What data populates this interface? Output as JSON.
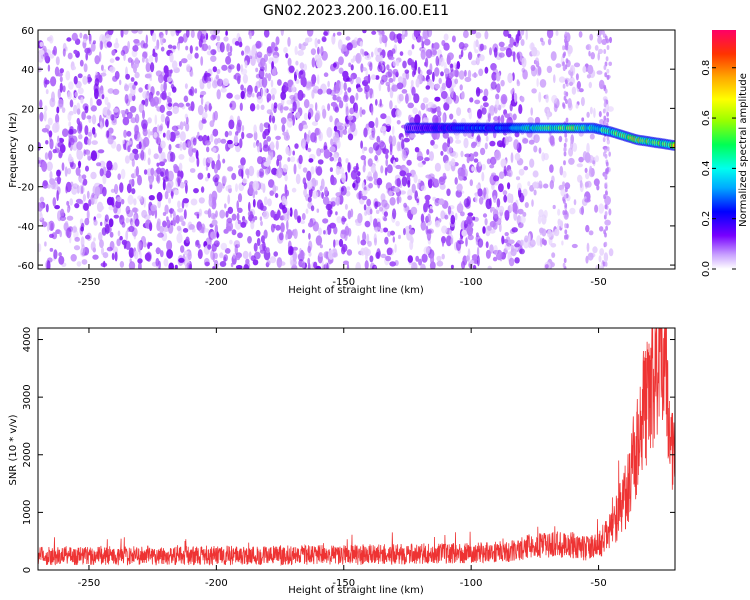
{
  "chart_data": [
    {
      "type": "heatmap",
      "title": "GN02.2023.200.16.00.E11",
      "xlabel": "Height of straight line (km)",
      "ylabel": "Frequency (Hz)",
      "xlim": [
        -270,
        -20
      ],
      "ylim": [
        -62,
        60
      ],
      "xticks": [
        -250,
        -200,
        -150,
        -100,
        -50
      ],
      "yticks": [
        -60,
        -40,
        -20,
        0,
        20,
        40,
        60
      ],
      "noise_regions": [
        {
          "x_from": -270,
          "x_to": -80,
          "level": "dense"
        },
        {
          "x_from": -80,
          "x_to": -45,
          "level": "sparse"
        },
        {
          "x_from": -45,
          "x_to": -20,
          "level": "none"
        }
      ],
      "signal_track": {
        "x": [
          -125,
          -110,
          -100,
          -90,
          -80,
          -70,
          -60,
          -52,
          -45,
          -40,
          -35,
          -30,
          -25,
          -20
        ],
        "y": [
          10,
          10,
          10,
          10,
          10,
          10,
          10,
          10,
          8,
          6,
          4,
          3,
          2,
          1
        ],
        "amplitude": [
          0.15,
          0.25,
          0.3,
          0.3,
          0.45,
          0.6,
          0.65,
          0.5,
          0.55,
          0.65,
          0.7,
          0.7,
          0.65,
          0.75
        ]
      },
      "colorbar": {
        "label": "Normalized spectral amplitude",
        "range": [
          0,
          0.95
        ],
        "ticks": [
          "0.0",
          "0.2",
          "0.4",
          "0.6",
          "0.8"
        ],
        "colormap": "rainbow"
      }
    },
    {
      "type": "line",
      "xlabel": "Height of straight line (km)",
      "ylabel": "SNR (10 * v/v)",
      "xlim": [
        -270,
        -20
      ],
      "ylim": [
        0,
        4200
      ],
      "xticks": [
        -250,
        -200,
        -150,
        -100,
        -50
      ],
      "yticks": [
        0,
        1000,
        2000,
        3000,
        4000
      ],
      "color": "#ee3333",
      "envelope": [
        [
          -270,
          250,
          140
        ],
        [
          -200,
          250,
          140
        ],
        [
          -130,
          270,
          150
        ],
        [
          -100,
          300,
          150
        ],
        [
          -82,
          330,
          160
        ],
        [
          -78,
          420,
          180
        ],
        [
          -70,
          430,
          180
        ],
        [
          -65,
          450,
          200
        ],
        [
          -60,
          420,
          200
        ],
        [
          -55,
          380,
          180
        ],
        [
          -50,
          420,
          200
        ],
        [
          -45,
          700,
          280
        ],
        [
          -40,
          1200,
          450
        ],
        [
          -37,
          1700,
          650
        ],
        [
          -34,
          2400,
          800
        ],
        [
          -31,
          2900,
          900
        ],
        [
          -28,
          3300,
          1000
        ],
        [
          -26,
          3600,
          1000
        ],
        [
          -24,
          3800,
          1000
        ],
        [
          -22,
          2200,
          600
        ],
        [
          -20,
          2000,
          600
        ]
      ]
    }
  ]
}
